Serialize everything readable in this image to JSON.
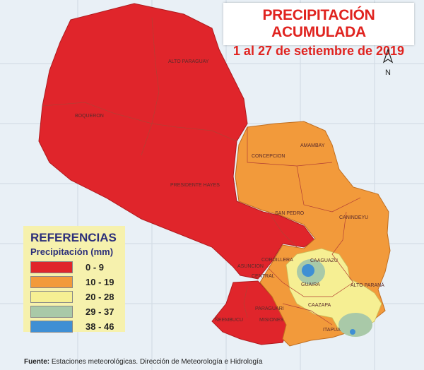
{
  "title": {
    "line1": "PRECIPITACIÓN ACUMULADA",
    "line2": "1 al 27 de setiembre de 2019",
    "color": "#e0231f"
  },
  "north_label": "N",
  "legend": {
    "title": "REFERENCIAS",
    "subtitle": "Precipitación (mm)",
    "items": [
      {
        "label": "0 - 9",
        "color": "#e0252b"
      },
      {
        "label": "10 - 19",
        "color": "#f29a3b"
      },
      {
        "label": "20 - 28",
        "color": "#f6ef93"
      },
      {
        "label": "29 - 37",
        "color": "#a9c9a8"
      },
      {
        "label": "38 - 46",
        "color": "#3f8fd4"
      }
    ]
  },
  "departments": {
    "alto_paraguay": "ALTO PARAGUAY",
    "boqueron": "BOQUERON",
    "presidente_hayes": "PRESIDENTE HAYES",
    "concepcion": "CONCEPCION",
    "amambay": "AMAMBAY",
    "san_pedro": "SAN PEDRO",
    "canindeyu": "CANINDEYU",
    "cordillera": "CORDILLERA",
    "caaguazu": "CAAGUAZU",
    "asuncion": "ASUNCION",
    "central": "CENTRAL",
    "guaira": "GUAIRA",
    "alto_parana": "ALTO PARANÁ",
    "paraguari": "PARAGUARI",
    "caazapa": "CAAZAPA",
    "itapua": "ITAPUA",
    "neembucu": "ÑEEMBUCU",
    "misiones": "MISIONES"
  },
  "source": {
    "bold": "Fuente:",
    "text": " Estaciones meteorológicas. Dirección de Meteorología e Hidrología"
  }
}
